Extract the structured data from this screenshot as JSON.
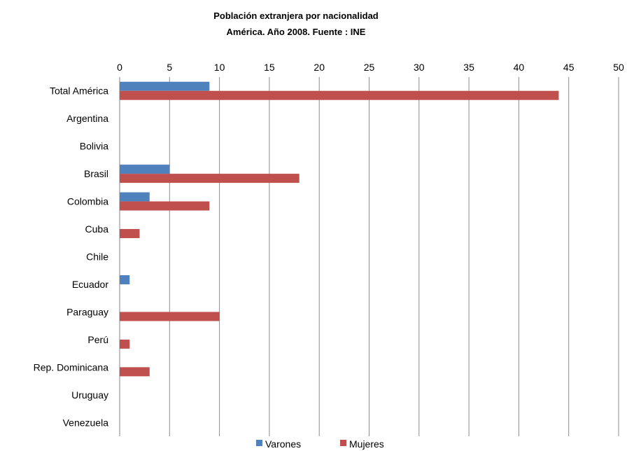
{
  "chart_data": {
    "type": "bar",
    "orientation": "horizontal",
    "title": "Población extranjera por nacionalidad",
    "subtitle": "América. Año 2008. Fuente : INE",
    "categories": [
      "Total América",
      "Argentina",
      "Bolivia",
      "Brasil",
      "Colombia",
      "Cuba",
      "Chile",
      "Ecuador",
      "Paraguay",
      "Perú",
      "Rep. Dominicana",
      "Uruguay",
      "Venezuela"
    ],
    "series": [
      {
        "name": "Varones",
        "color": "#4f81bd",
        "values": [
          9,
          0,
          0,
          5,
          3,
          0,
          0,
          1,
          0,
          0,
          0,
          0,
          0
        ]
      },
      {
        "name": "Mujeres",
        "color": "#c0504d",
        "values": [
          44,
          0,
          0,
          18,
          9,
          2,
          0,
          0,
          10,
          1,
          3,
          0,
          0
        ]
      }
    ],
    "xlim": [
      0,
      50
    ],
    "xticks": [
      0,
      5,
      10,
      15,
      20,
      25,
      30,
      35,
      40,
      45,
      50
    ],
    "xaxis_position": "top",
    "grid": true,
    "legend_position": "bottom"
  }
}
